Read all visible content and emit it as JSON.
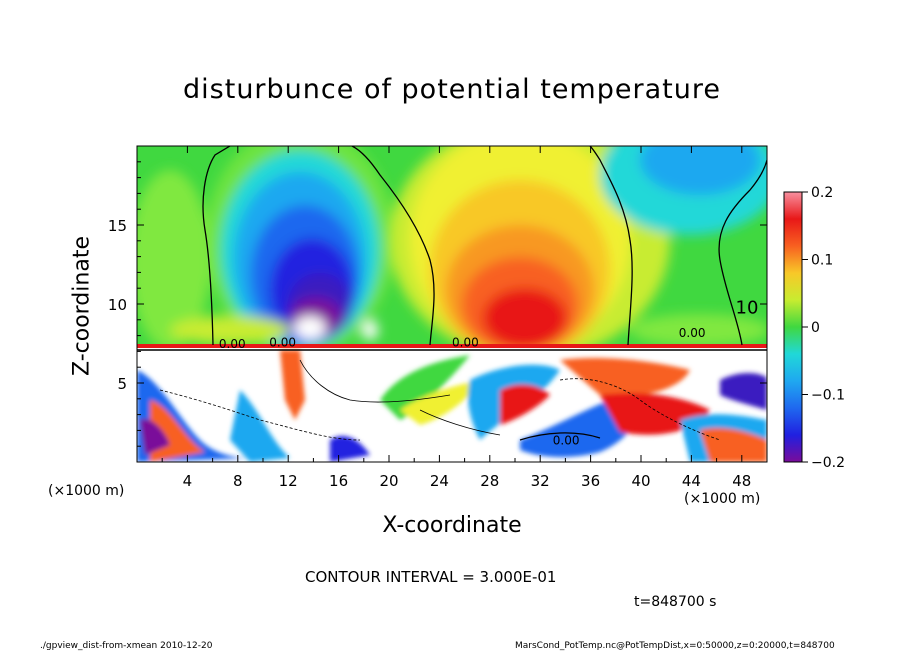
{
  "chart_data": {
    "type": "heatmap",
    "title": "disturbunce of potential temperature",
    "xlabel": "X-coordinate",
    "ylabel": "Z-coordinate",
    "x_unit": "(×1000 m)",
    "x_unit_bottom": "(×1000 m)",
    "xlim": [
      0,
      50
    ],
    "ylim": [
      0,
      20
    ],
    "x_ticks": [
      4,
      8,
      12,
      16,
      20,
      24,
      28,
      32,
      36,
      40,
      44,
      48
    ],
    "y_ticks": [
      5,
      10,
      15
    ],
    "x_tick_labels": [
      "4",
      "8",
      "12",
      "16",
      "20",
      "24",
      "28",
      "32",
      "36",
      "40",
      "44",
      "48"
    ],
    "y_tick_labels": [
      "5",
      "10",
      "15"
    ],
    "colorbar": {
      "range": [
        -0.2,
        0.2
      ],
      "ticks": [
        0.2,
        0.1,
        0,
        -0.1,
        -0.2
      ],
      "tick_labels": [
        "0.2",
        "0.1",
        "0",
        "−0.1",
        "−0.2"
      ],
      "colors": [
        "#7a0c9a",
        "#3b1fc0",
        "#2020e0",
        "#1f68ef",
        "#1fa8f0",
        "#20d8d8",
        "#40e8a8",
        "#40d840",
        "#80e840",
        "#c8ec30",
        "#f0f030",
        "#f8c828",
        "#f89820",
        "#f86020",
        "#e81818",
        "#e80e3a",
        "#f890a0"
      ]
    },
    "contour_labels": [
      "0.00",
      "0.00",
      "0.00",
      "0.00",
      "0.00",
      "10"
    ],
    "features": [
      {
        "name": "cold anomaly",
        "x": 14,
        "z": 11,
        "value": -0.2
      },
      {
        "name": "warm anomaly",
        "x": 32,
        "z": 10,
        "value": 0.17
      },
      {
        "name": "cold anomaly",
        "x": 47,
        "z": 17,
        "value": -0.08
      }
    ]
  },
  "annotations": {
    "contour_interval": "CONTOUR INTERVAL = 3.000E-01",
    "time": "t=848700 s",
    "footer_left": "./gpview_dist-from-xmean  2010-12-20",
    "footer_right": "MarsCond_PotTemp.nc@PotTempDist,x=0:50000,z=0:20000,t=848700"
  }
}
